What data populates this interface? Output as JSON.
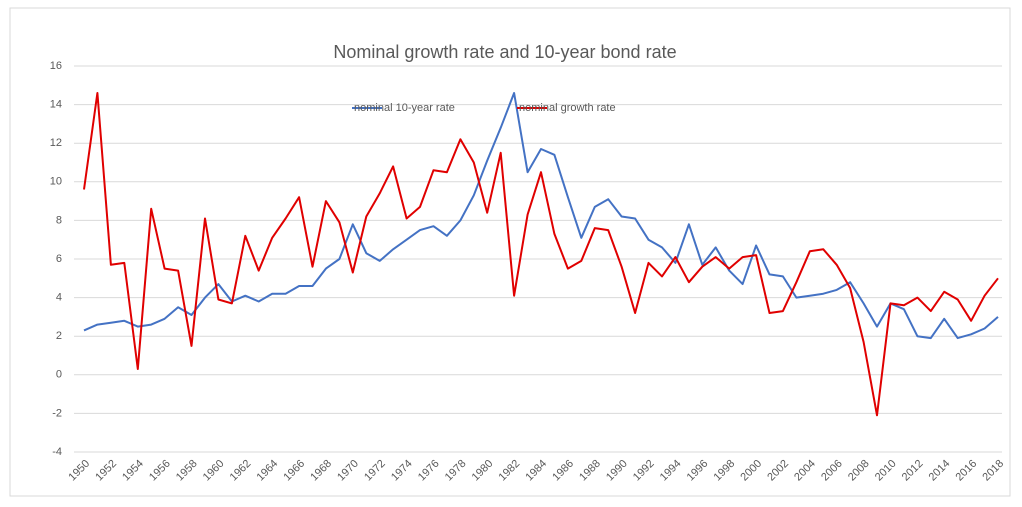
{
  "chart_data": {
    "type": "line",
    "title": "Nominal growth rate and 10-year bond rate",
    "categories": [
      "1950",
      null,
      "1952",
      null,
      "1954",
      null,
      "1956",
      null,
      "1958",
      null,
      "1960",
      null,
      "1962",
      null,
      "1964",
      null,
      "1966",
      null,
      "1968",
      null,
      "1970",
      null,
      "1972",
      null,
      "1974",
      null,
      "1976",
      null,
      "1978",
      null,
      "1980",
      null,
      "1982",
      null,
      "1984",
      null,
      "1986",
      null,
      "1988",
      null,
      "1990",
      null,
      "1992",
      null,
      "1994",
      null,
      "1996",
      null,
      "1998",
      null,
      "2000",
      null,
      "2002",
      null,
      "2004",
      null,
      "2006",
      null,
      "2008",
      null,
      "2010",
      null,
      "2012",
      null,
      "2014",
      null,
      "2016",
      null,
      "2018"
    ],
    "series": [
      {
        "name": "nominal 10-year rate",
        "color": "#4472c4",
        "values": [
          2.3,
          2.6,
          2.7,
          2.8,
          2.5,
          2.6,
          2.9,
          3.5,
          3.1,
          4.0,
          4.7,
          3.8,
          4.1,
          3.8,
          4.2,
          4.2,
          4.6,
          4.6,
          5.5,
          6.0,
          7.8,
          6.3,
          5.9,
          6.5,
          7.0,
          7.5,
          7.7,
          7.2,
          8.0,
          9.3,
          11.1,
          12.8,
          14.6,
          10.5,
          11.7,
          11.4,
          9.2,
          7.1,
          8.7,
          9.1,
          8.2,
          8.1,
          7.0,
          6.6,
          5.8,
          7.8,
          5.7,
          6.6,
          5.4,
          4.7,
          6.7,
          5.2,
          5.1,
          4.0,
          4.1,
          4.2,
          4.4,
          4.8,
          3.7,
          2.5,
          3.7,
          3.4,
          2.0,
          1.9,
          2.9,
          1.9,
          2.1,
          2.4,
          3.0
        ]
      },
      {
        "name": "nominal growth rate",
        "color": "#e00000",
        "values": [
          9.6,
          14.6,
          5.7,
          5.8,
          0.3,
          8.6,
          5.5,
          5.4,
          1.5,
          8.1,
          3.9,
          3.7,
          7.2,
          5.4,
          7.1,
          8.1,
          9.2,
          5.6,
          9.0,
          7.9,
          5.3,
          8.2,
          9.4,
          10.8,
          8.1,
          8.7,
          10.6,
          10.5,
          12.2,
          11.0,
          8.4,
          11.5,
          4.1,
          8.3,
          10.5,
          7.3,
          5.5,
          5.9,
          7.6,
          7.5,
          5.6,
          3.2,
          5.8,
          5.1,
          6.1,
          4.8,
          5.6,
          6.1,
          5.5,
          6.1,
          6.2,
          3.2,
          3.3,
          4.8,
          6.4,
          6.5,
          5.7,
          4.5,
          1.7,
          -2.1,
          3.7,
          3.6,
          4.0,
          3.3,
          4.3,
          3.9,
          2.8,
          4.1,
          5.0
        ]
      }
    ],
    "ylim": [
      -4,
      16
    ],
    "yticks": [
      -4,
      -2,
      0,
      2,
      4,
      6,
      8,
      10,
      12,
      14,
      16
    ],
    "grid": true
  }
}
